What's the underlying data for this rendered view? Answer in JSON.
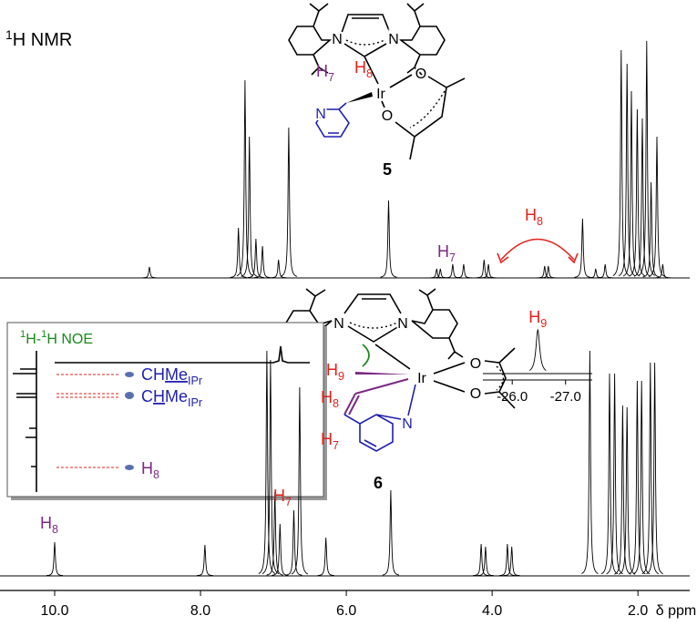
{
  "chart_data": {
    "type": "line",
    "title": {
      "sup": "1",
      "text": "H NMR"
    },
    "xlabel": "δ ppm",
    "xlim": [
      10.75,
      1.19
    ],
    "xticks": [
      {
        "value": 10,
        "label": "10.0"
      },
      {
        "value": 8,
        "label": "8.0"
      },
      {
        "value": 6,
        "label": "6.0"
      },
      {
        "value": 4,
        "label": "4.0"
      },
      {
        "value": 2,
        "label": "2.0"
      }
    ],
    "color": "#000000",
    "series": [
      {
        "x": [
          8.7,
          7.48,
          7.39,
          7.33,
          7.24,
          7.15,
          6.93,
          6.79,
          5.42,
          4.76,
          4.71,
          4.54,
          4.39,
          4.11,
          4.05,
          3.28,
          3.23,
          2.76,
          2.58,
          2.45,
          2.23,
          2.15,
          2.09,
          2.01,
          1.94,
          1.88,
          1.82,
          1.74,
          1.66
        ],
        "values": [
          12,
          55,
          217,
          155,
          43,
          35,
          20,
          165,
          85,
          10,
          10,
          15,
          15,
          20,
          15,
          13,
          13,
          65,
          10,
          15,
          250,
          235,
          205,
          185,
          175,
          260,
          105,
          155,
          15
        ]
      },
      {
        "x": [
          10.0,
          7.94,
          7.09,
          7.04,
          6.98,
          6.91,
          6.72,
          6.64,
          6.28,
          5.39,
          4.15,
          4.09,
          3.79,
          3.73,
          2.66,
          2.39,
          2.32,
          2.21,
          2.15,
          2.01,
          1.95,
          1.83,
          1.77
        ],
        "values": [
          37,
          34,
          247,
          237,
          92,
          57,
          72,
          207,
          42,
          94,
          35,
          32,
          35,
          32,
          247,
          222,
          222,
          187,
          185,
          214,
          214,
          234,
          234
        ]
      }
    ],
    "annotations": [
      {
        "text": "H",
        "sub": "7"
      },
      {
        "text": "H",
        "sub": "8"
      },
      {
        "text": "H",
        "sub": "8"
      },
      {
        "text": "H",
        "sub": "7"
      }
    ]
  },
  "compound_5": {
    "number": "5",
    "atoms": [
      "N",
      "N",
      "Ir",
      "O",
      "O",
      "N"
    ],
    "labels": [
      {
        "text": "H",
        "sub": "7"
      },
      {
        "text": "H",
        "sub": "8"
      }
    ]
  },
  "compound_6": {
    "number": "6",
    "atoms": [
      "N",
      "N",
      "Ir",
      "O",
      "O",
      "N"
    ],
    "labels": [
      {
        "text": "H",
        "sub": "9"
      },
      {
        "text": "H",
        "sub": "8"
      },
      {
        "text": "H",
        "sub": "7"
      }
    ]
  },
  "noe_inset": {
    "title": {
      "sup1": "1",
      "mid": "H-",
      "sup2": "1",
      "end": "H NOE"
    },
    "rows": [
      {
        "pre": "CH",
        "under": "Me",
        "sub": "IPr"
      },
      {
        "pre": "C",
        "under": "H",
        "post": "Me",
        "sub": "IPr"
      },
      {
        "text": "H",
        "sub": "8"
      }
    ]
  },
  "hydride_inset": {
    "label": {
      "text": "H",
      "sub": "9"
    },
    "xlim": [
      -25.45,
      -27.5
    ],
    "xticks": [
      {
        "value": -26,
        "label": "-26.0"
      },
      {
        "value": -27,
        "label": "-27.0"
      }
    ],
    "peak": {
      "x": -26.48,
      "value": 48
    }
  }
}
